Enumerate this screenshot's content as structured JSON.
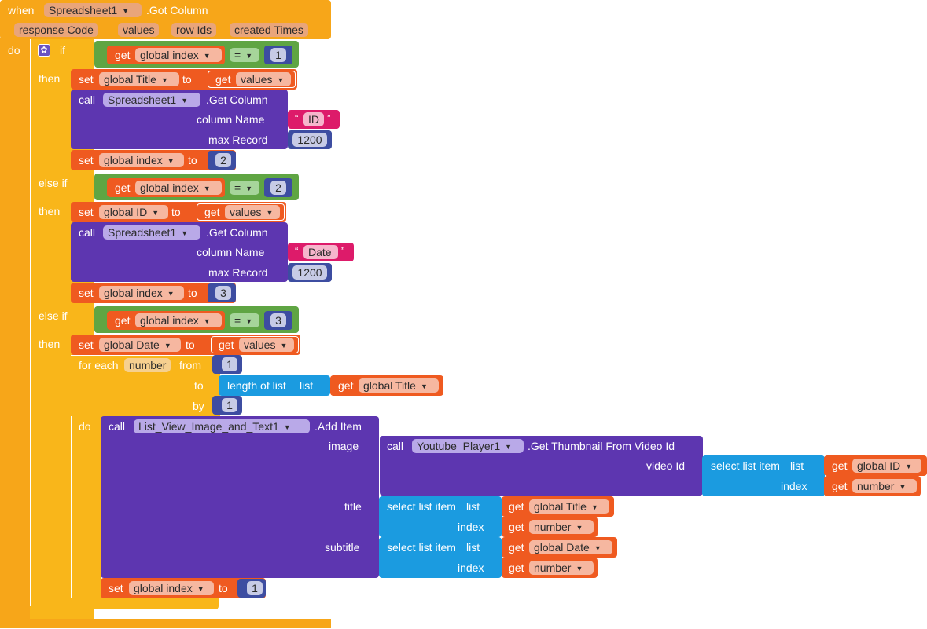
{
  "event": {
    "when": "when",
    "component": "Spreadsheet1",
    "event_name": ".Got Column",
    "params": [
      "response Code",
      "values",
      "row Ids",
      "created Times"
    ],
    "do": "do"
  },
  "labels": {
    "if": "if",
    "then": "then",
    "else_if": "else if",
    "get": "get",
    "set": "set",
    "to": "to",
    "call": "call",
    "eq": "=",
    "column_name": "column Name",
    "max_record": "max Record",
    "for_each": "for each",
    "from": "from",
    "by": "by",
    "do": "do",
    "length_of_list": "length of list",
    "list": "list",
    "index": "index",
    "select_list_item": "select list item",
    "image": "image",
    "title": "title",
    "subtitle": "subtitle",
    "video_id": "video Id",
    "quote_open": "“",
    "quote_close": "”"
  },
  "vars": {
    "global_index": "global index",
    "global_title": "global Title",
    "global_id": "global ID",
    "global_date": "global Date",
    "values": "values",
    "number": "number"
  },
  "components": {
    "spreadsheet": "Spreadsheet1",
    "get_column": ".Get Column",
    "list_view": "List_View_Image_and_Text1",
    "add_item": ".Add Item",
    "youtube": "Youtube_Player1",
    "get_thumbnail": ".Get Thumbnail From Video Id"
  },
  "values": {
    "n1": "1",
    "n2": "2",
    "n3": "3",
    "max_record": "1200",
    "col_id": "ID",
    "col_date": "Date"
  }
}
